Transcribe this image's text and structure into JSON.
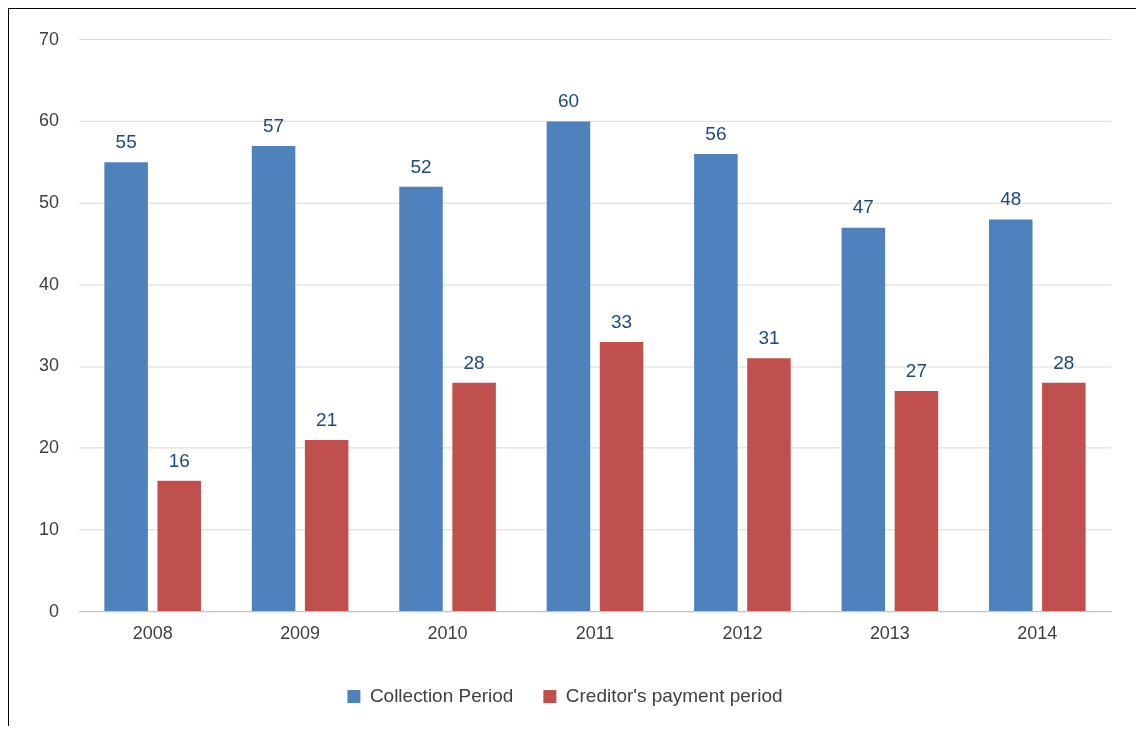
{
  "chart_data": {
    "type": "bar",
    "categories": [
      "2008",
      "2009",
      "2010",
      "2011",
      "2012",
      "2013",
      "2014"
    ],
    "series": [
      {
        "name": "Collection Period",
        "color": "#4f81bd",
        "values": [
          55,
          57,
          52,
          60,
          56,
          47,
          48
        ]
      },
      {
        "name": "Creditor's payment period",
        "color": "#c0504d",
        "values": [
          16,
          21,
          28,
          33,
          31,
          27,
          28
        ]
      }
    ],
    "ylim": [
      0,
      70
    ],
    "yticks": [
      0,
      10,
      20,
      30,
      40,
      50,
      60,
      70
    ],
    "grid": "y",
    "legend": "bottom",
    "data_labels": true
  }
}
